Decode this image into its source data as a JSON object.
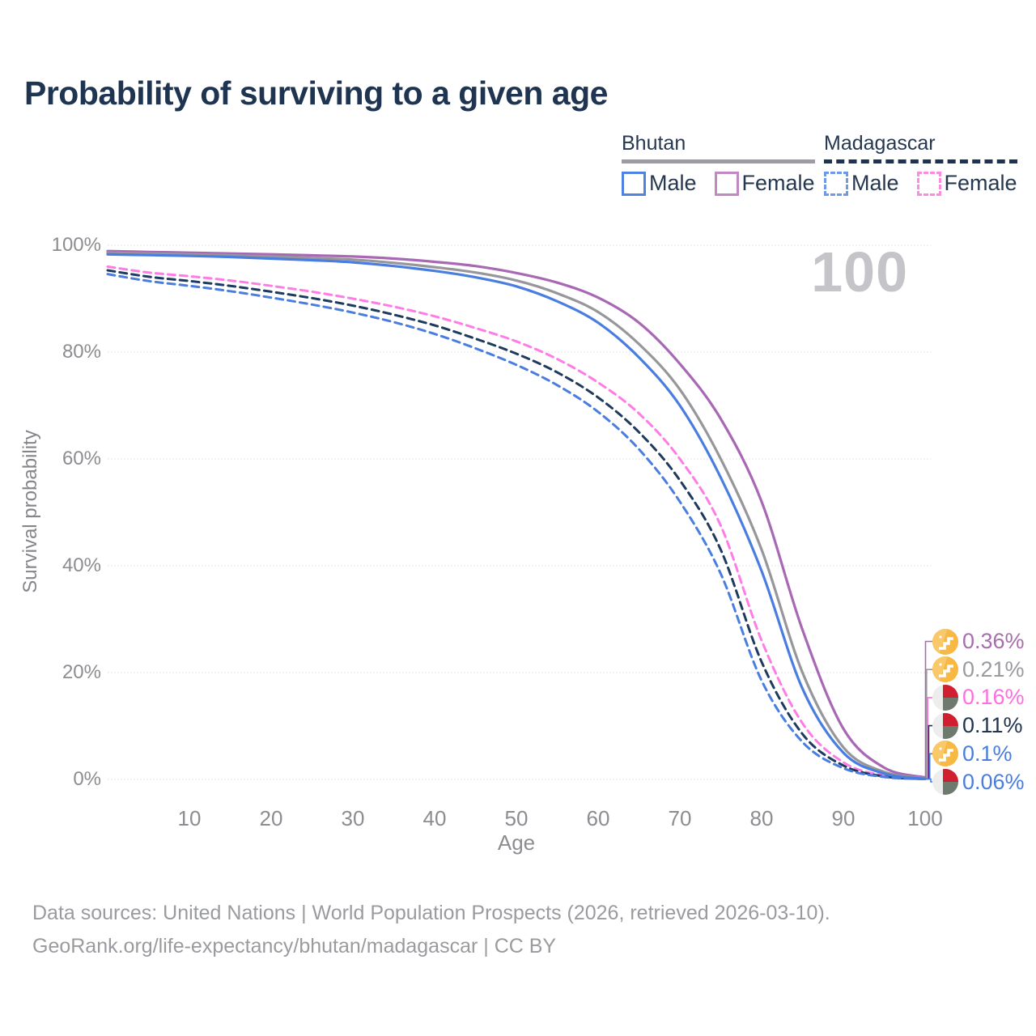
{
  "page": {
    "title": "Probability of surviving to a given age",
    "watermark": "100"
  },
  "legend": {
    "groups": [
      {
        "label": "Bhutan",
        "line_style": "solid",
        "underline_color": "#9c9ca1",
        "items": [
          {
            "label": "Male",
            "color": "#4f82e3",
            "dashed": false
          },
          {
            "label": "Female",
            "color": "#c288c4",
            "dashed": false
          }
        ]
      },
      {
        "label": "Madagascar",
        "line_style": "dashed",
        "underline_color": "#1d3354",
        "items": [
          {
            "label": "Male",
            "color": "#6d9ae8",
            "dashed": true
          },
          {
            "label": "Female",
            "color": "#ff8ae4",
            "dashed": true
          }
        ]
      }
    ]
  },
  "chart_data": {
    "type": "line",
    "title": "Probability of surviving to a given age",
    "xlabel": "Age",
    "ylabel": "Survival probability",
    "xlim": [
      0,
      100
    ],
    "ylim": [
      0,
      100
    ],
    "x_ticks": [
      10,
      20,
      30,
      40,
      50,
      60,
      70,
      80,
      90,
      100
    ],
    "y_ticks": [
      "0%",
      "20%",
      "40%",
      "60%",
      "80%",
      "100%"
    ],
    "grid": "horizontal-dotted",
    "legend_position": "top-right",
    "x": [
      0,
      5,
      10,
      15,
      20,
      25,
      30,
      35,
      40,
      45,
      50,
      55,
      60,
      65,
      70,
      75,
      80,
      85,
      90,
      95,
      100
    ],
    "series": [
      {
        "name": "Bhutan Female",
        "country": "Bhutan",
        "sex": "Female",
        "color": "#a868b4",
        "dashed": false,
        "values": [
          98.9,
          98.75,
          98.6,
          98.45,
          98.3,
          98.1,
          97.9,
          97.5,
          96.9,
          96.1,
          94.8,
          93.0,
          90.2,
          85.5,
          77.8,
          67.5,
          52.0,
          28.0,
          9.5,
          2.2,
          0.36
        ],
        "end_label": {
          "text": "0.36%",
          "color": "#a56faa",
          "flag": "bhutan"
        }
      },
      {
        "name": "Bhutan",
        "country": "Bhutan",
        "sex": "Both",
        "color": "#96969b",
        "dashed": false,
        "values": [
          98.6,
          98.45,
          98.3,
          98.1,
          97.9,
          97.6,
          97.3,
          96.7,
          95.9,
          94.9,
          93.4,
          91.0,
          87.5,
          81.5,
          73.0,
          60.0,
          43.0,
          20.0,
          6.0,
          1.4,
          0.21
        ],
        "end_label": {
          "text": "0.21%",
          "color": "#9a9aa0",
          "flag": "bhutan"
        }
      },
      {
        "name": "Madagascar Female",
        "country": "Madagascar",
        "sex": "Female",
        "color": "#ff7ce6",
        "dashed": true,
        "values": [
          96.0,
          94.9,
          94.2,
          93.4,
          92.4,
          91.3,
          90.0,
          88.5,
          86.7,
          84.5,
          82.0,
          78.7,
          74.3,
          68.5,
          60.0,
          47.5,
          26.0,
          10.5,
          3.2,
          0.7,
          0.16
        ],
        "end_label": {
          "text": "0.16%",
          "color": "#ff6ee0",
          "flag": "madagascar"
        }
      },
      {
        "name": "Madagascar",
        "country": "Madagascar",
        "sex": "Both",
        "color": "#1e3a5c",
        "dashed": true,
        "values": [
          95.3,
          94.1,
          93.3,
          92.4,
          91.3,
          90.1,
          88.7,
          87.0,
          85.0,
          82.5,
          79.7,
          76.2,
          71.5,
          65.0,
          56.0,
          43.0,
          22.0,
          8.5,
          2.6,
          0.55,
          0.11
        ],
        "end_label": {
          "text": "0.11%",
          "color": "#22354e",
          "flag": "madagascar"
        }
      },
      {
        "name": "Bhutan Male",
        "country": "Bhutan",
        "sex": "Male",
        "color": "#4a7de0",
        "dashed": false,
        "values": [
          98.3,
          98.15,
          98.0,
          97.8,
          97.5,
          97.2,
          96.8,
          96.1,
          95.2,
          94.0,
          92.3,
          89.5,
          85.5,
          79.0,
          70.0,
          56.5,
          39.0,
          17.0,
          5.0,
          1.1,
          0.1
        ],
        "end_label": {
          "text": "0.1%",
          "color": "#4a7de0",
          "flag": "bhutan"
        }
      },
      {
        "name": "Madagascar Male",
        "country": "Madagascar",
        "sex": "Male",
        "color": "#4a7de0",
        "dashed": true,
        "values": [
          94.6,
          93.3,
          92.4,
          91.4,
          90.2,
          88.9,
          87.4,
          85.6,
          83.4,
          80.7,
          77.6,
          73.8,
          68.8,
          61.8,
          52.0,
          38.5,
          18.5,
          7.0,
          2.1,
          0.45,
          0.06
        ],
        "end_label": {
          "text": "0.06%",
          "color": "#4a7de0",
          "flag": "madagascar"
        }
      }
    ]
  },
  "footer": {
    "line1": "Data sources: United Nations | World Population Prospects (2026, retrieved 2026-03-10).",
    "line2": "GeoRank.org/life-expectancy/bhutan/madagascar | CC BY"
  },
  "flag_colors": {
    "bhutan_circle": "#f7b844",
    "bhutan_glyph": "#ffffff",
    "madagascar_white": "#ededed",
    "madagascar_red": "#d11f30",
    "madagascar_green": "#6e7a6e"
  }
}
